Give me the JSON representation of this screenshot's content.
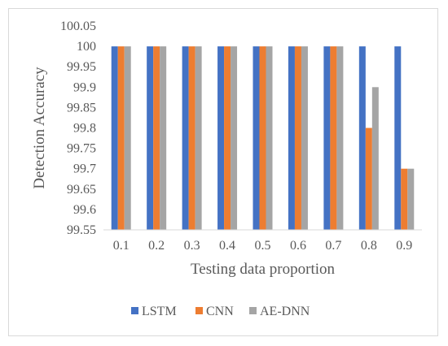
{
  "chart_data": {
    "type": "bar",
    "categories": [
      "0.1",
      "0.2",
      "0.3",
      "0.4",
      "0.5",
      "0.6",
      "0.7",
      "0.8",
      "0.9"
    ],
    "series": [
      {
        "name": "LSTM",
        "color": "#4472c4",
        "values": [
          100,
          100,
          100,
          100,
          100,
          100,
          100,
          100,
          100
        ]
      },
      {
        "name": "CNN",
        "color": "#ed7d31",
        "values": [
          100,
          100,
          100,
          100,
          100,
          100,
          100,
          99.8,
          99.7
        ]
      },
      {
        "name": "AE-DNN",
        "color": "#a5a5a5",
        "values": [
          100,
          100,
          100,
          100,
          100,
          100,
          100,
          99.9,
          99.7
        ]
      }
    ],
    "xlabel": "Testing data proportion",
    "ylabel": "Detection Accuracy",
    "ylim": [
      99.55,
      100.05
    ],
    "yticks": [
      "99.55",
      "99.6",
      "99.65",
      "99.7",
      "99.75",
      "99.8",
      "99.85",
      "99.9",
      "99.95",
      "100",
      "100.05"
    ],
    "grid": false,
    "legend": "bottom"
  }
}
